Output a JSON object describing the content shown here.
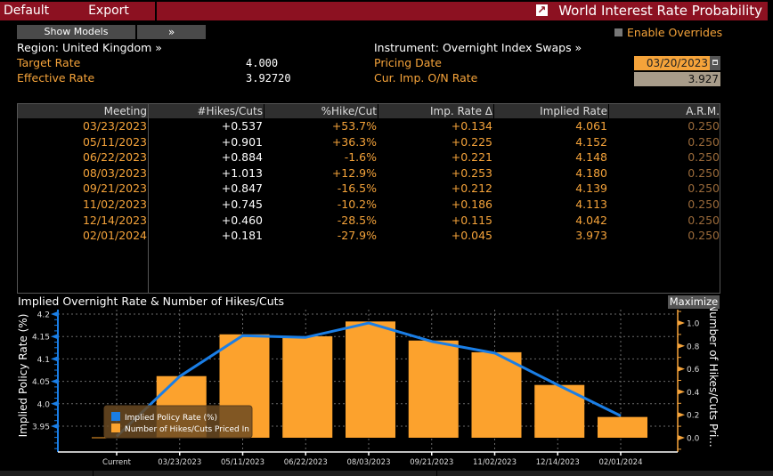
{
  "toolbar": {
    "default_label": "Default",
    "export_label": "Export",
    "title": "World Interest Rate Probability"
  },
  "controls": {
    "show_models_label": "Show Models",
    "expand_label": "»",
    "enable_overrides_label": "Enable Overrides"
  },
  "info": {
    "region": "Region: United Kingdom »",
    "instrument": "Instrument: Overnight Index Swaps »",
    "target_rate_label": "Target Rate",
    "target_rate_value": "4.000",
    "effective_rate_label": "Effective Rate",
    "effective_rate_value": "3.92720",
    "pricing_date_label": "Pricing Date",
    "pricing_date_value": "03/20/2023",
    "cur_imp_label": "Cur. Imp. O/N Rate",
    "cur_imp_value": "3.927"
  },
  "table": {
    "headers": [
      "Meeting",
      "#Hikes/Cuts",
      "%Hike/Cut",
      "Imp. Rate Δ",
      "Implied Rate",
      "A.R.M."
    ],
    "rows": [
      [
        "03/23/2023",
        "+0.537",
        "+53.7%",
        "+0.134",
        "4.061",
        "0.250"
      ],
      [
        "05/11/2023",
        "+0.901",
        "+36.3%",
        "+0.225",
        "4.152",
        "0.250"
      ],
      [
        "06/22/2023",
        "+0.884",
        "-1.6%",
        "+0.221",
        "4.148",
        "0.250"
      ],
      [
        "08/03/2023",
        "+1.013",
        "+12.9%",
        "+0.253",
        "4.180",
        "0.250"
      ],
      [
        "09/21/2023",
        "+0.847",
        "-16.5%",
        "+0.212",
        "4.139",
        "0.250"
      ],
      [
        "11/02/2023",
        "+0.745",
        "-10.2%",
        "+0.186",
        "4.113",
        "0.250"
      ],
      [
        "12/14/2023",
        "+0.460",
        "-28.5%",
        "+0.115",
        "4.042",
        "0.250"
      ],
      [
        "02/01/2024",
        "+0.181",
        "-27.9%",
        "+0.045",
        "3.973",
        "0.250"
      ]
    ]
  },
  "chart_header": {
    "title": "Implied Overnight Rate & Number of Hikes/Cuts",
    "maximize_label": "Maximize"
  },
  "chart_data": {
    "type": "bar+line",
    "title": "Implied Overnight Rate & Number of Hikes/Cuts",
    "categories": [
      "Current",
      "03/23/2023",
      "05/11/2023",
      "06/22/2023",
      "08/03/2023",
      "09/21/2023",
      "11/02/2023",
      "12/14/2023",
      "02/01/2024"
    ],
    "series": [
      {
        "name": "Implied Policy Rate (%)",
        "type": "line",
        "axis": "left",
        "color": "#1a7ee6",
        "values": [
          3.927,
          4.061,
          4.152,
          4.148,
          4.18,
          4.139,
          4.113,
          4.042,
          3.973
        ]
      },
      {
        "name": "Number of Hikes/Cuts Priced In",
        "type": "bar",
        "axis": "right",
        "color": "#fca22d",
        "values": [
          0,
          0.537,
          0.901,
          0.884,
          1.013,
          0.847,
          0.745,
          0.46,
          0.181
        ]
      }
    ],
    "ylabel_left": "Implied Policy Rate (%)",
    "ylabel_right": "Number of Hikes/Cuts Pri...",
    "yticks_left": [
      "4.2",
      "4.15",
      "4.1",
      "4.05",
      "4.0",
      "3.95"
    ],
    "yticks_left_values": [
      4.2,
      4.15,
      4.1,
      4.05,
      4.0,
      3.95
    ],
    "yticks_right": [
      "1.0",
      "0.8",
      "0.6",
      "0.4",
      "0.2",
      "0.0"
    ],
    "yticks_right_values": [
      1.0,
      0.8,
      0.6,
      0.4,
      0.2,
      0.0
    ],
    "ylim_left": [
      3.894,
      4.21
    ],
    "ylim_right": [
      -0.12,
      1.12
    ],
    "grid": true,
    "legend_position": "bottom-left"
  }
}
